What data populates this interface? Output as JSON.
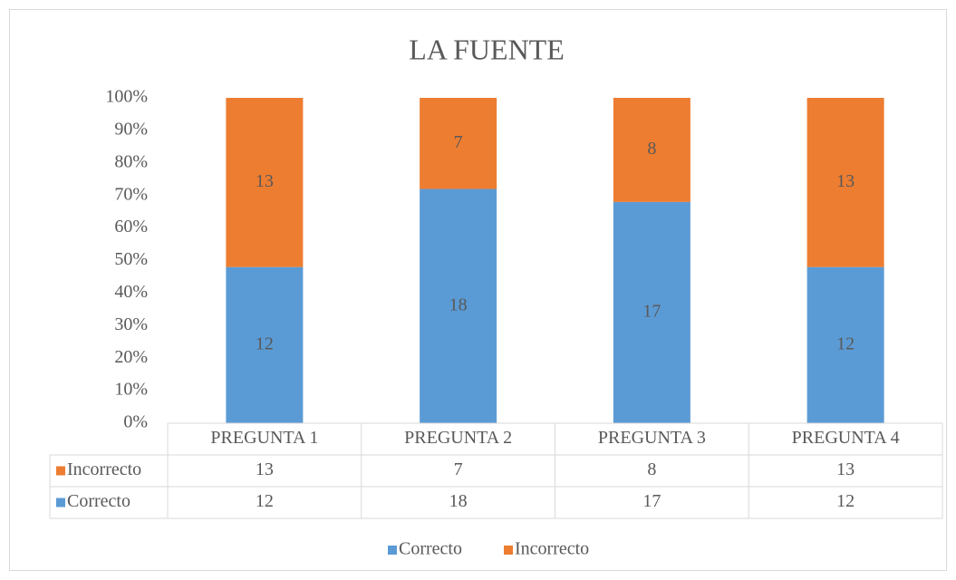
{
  "chart_data": {
    "type": "bar",
    "stacking": "percent",
    "title": "LA FUENTE",
    "categories": [
      "PREGUNTA 1",
      "PREGUNTA 2",
      "PREGUNTA 3",
      "PREGUNTA 4"
    ],
    "series": [
      {
        "name": "Correcto",
        "color": "#5b9bd5",
        "values": [
          12,
          18,
          17,
          12
        ]
      },
      {
        "name": "Incorrecto",
        "color": "#ed7d31",
        "values": [
          13,
          7,
          8,
          13
        ]
      }
    ],
    "ylim": [
      0,
      100
    ],
    "yticks": [
      {
        "value": 0,
        "label": "0%"
      },
      {
        "value": 10,
        "label": "10%"
      },
      {
        "value": 20,
        "label": "20%"
      },
      {
        "value": 30,
        "label": "30%"
      },
      {
        "value": 40,
        "label": "40%"
      },
      {
        "value": 50,
        "label": "50%"
      },
      {
        "value": 60,
        "label": "60%"
      },
      {
        "value": 70,
        "label": "70%"
      },
      {
        "value": 80,
        "label": "80%"
      },
      {
        "value": 90,
        "label": "90%"
      },
      {
        "value": 100,
        "label": "100%"
      }
    ],
    "grid": false,
    "data_table": true,
    "legend": "bottom"
  }
}
